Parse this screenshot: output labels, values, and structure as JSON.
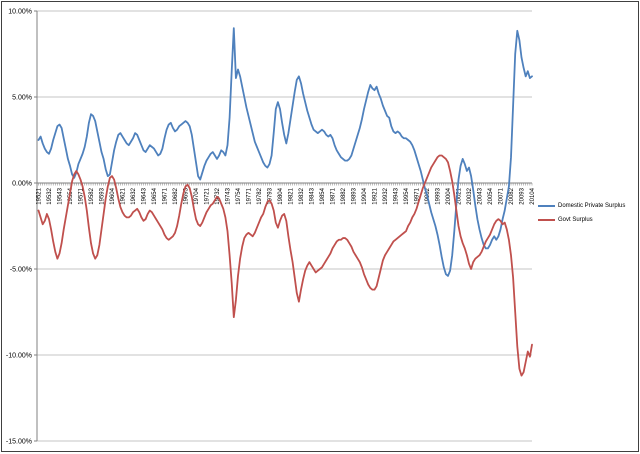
{
  "chart_data": {
    "type": "line",
    "title": "",
    "xlabel": "",
    "ylabel": "",
    "x_axis": {
      "start": "1952Q1",
      "end": "2010Q4",
      "frequency": "quarterly",
      "points": 236,
      "tick_interval_points": 5,
      "tick_labels": [
        "19521",
        "19532",
        "19543",
        "19554",
        "19571",
        "19582",
        "19593",
        "19604",
        "19621",
        "19632",
        "19643",
        "19654",
        "19671",
        "19682",
        "19693",
        "19704",
        "19721",
        "19732",
        "19743",
        "19754",
        "19771",
        "19782",
        "19793",
        "19804",
        "19821",
        "19832",
        "19843",
        "19854",
        "19871",
        "19882",
        "19893",
        "19904",
        "19921",
        "19932",
        "19943",
        "19954",
        "19971",
        "19982",
        "19993",
        "20004",
        "20021",
        "20032",
        "20043",
        "20054",
        "20071",
        "20082",
        "20093",
        "20104"
      ]
    },
    "y_axis": {
      "min": -15,
      "max": 10,
      "unit": "percent",
      "gridlines": true,
      "tick_labels": [
        "10.00%",
        "5.00%",
        "0.00%",
        "-5.00%",
        "-10.00%",
        "-15.00%"
      ],
      "tick_values": [
        10,
        5,
        0,
        -5,
        -10,
        -15
      ]
    },
    "legend": {
      "position": "right"
    },
    "series": [
      {
        "name": "Domestic Private Surplus",
        "color": "#4F81BD",
        "values": [
          2.5,
          2.7,
          2.3,
          2.0,
          1.8,
          1.7,
          2.0,
          2.5,
          2.9,
          3.3,
          3.4,
          3.2,
          2.6,
          2.0,
          1.4,
          1.0,
          0.5,
          0.3,
          0.6,
          1.1,
          1.4,
          1.7,
          2.1,
          2.7,
          3.5,
          4.0,
          3.9,
          3.6,
          3.0,
          2.4,
          1.8,
          1.4,
          0.8,
          0.4,
          0.5,
          1.2,
          1.9,
          2.4,
          2.8,
          2.9,
          2.7,
          2.5,
          2.3,
          2.2,
          2.4,
          2.6,
          2.9,
          2.8,
          2.5,
          2.2,
          1.9,
          1.8,
          2.0,
          2.2,
          2.1,
          2.0,
          1.8,
          1.6,
          1.7,
          2.0,
          2.6,
          3.1,
          3.4,
          3.5,
          3.2,
          3.0,
          3.1,
          3.3,
          3.4,
          3.5,
          3.6,
          3.5,
          3.3,
          2.8,
          2.0,
          1.2,
          0.4,
          0.2,
          0.6,
          1.0,
          1.3,
          1.5,
          1.7,
          1.8,
          1.6,
          1.4,
          1.6,
          1.9,
          1.8,
          1.6,
          2.2,
          3.8,
          6.5,
          9.0,
          6.1,
          6.6,
          6.2,
          5.6,
          5.0,
          4.4,
          3.9,
          3.4,
          2.9,
          2.4,
          2.1,
          1.8,
          1.5,
          1.2,
          1.0,
          0.9,
          1.1,
          1.6,
          2.9,
          4.3,
          4.7,
          4.3,
          3.5,
          2.8,
          2.3,
          2.9,
          3.7,
          4.5,
          5.3,
          6.0,
          6.2,
          5.8,
          5.2,
          4.7,
          4.2,
          3.8,
          3.4,
          3.1,
          3.0,
          2.9,
          3.0,
          3.1,
          3.0,
          2.8,
          2.7,
          2.8,
          2.6,
          2.2,
          1.9,
          1.7,
          1.5,
          1.4,
          1.3,
          1.3,
          1.4,
          1.6,
          2.0,
          2.4,
          2.8,
          3.2,
          3.7,
          4.3,
          4.8,
          5.3,
          5.7,
          5.5,
          5.4,
          5.6,
          5.2,
          4.9,
          4.5,
          4.2,
          3.9,
          3.8,
          3.3,
          3.0,
          2.9,
          3.0,
          2.9,
          2.7,
          2.6,
          2.6,
          2.5,
          2.4,
          2.2,
          1.9,
          1.5,
          1.1,
          0.7,
          0.2,
          -0.3,
          -0.7,
          -1.2,
          -1.7,
          -2.1,
          -2.5,
          -3.0,
          -3.6,
          -4.3,
          -4.9,
          -5.3,
          -5.4,
          -5.1,
          -4.2,
          -2.8,
          -1.2,
          0.2,
          1.0,
          1.4,
          1.1,
          0.7,
          0.9,
          0.4,
          -0.4,
          -1.3,
          -2.1,
          -2.7,
          -3.2,
          -3.6,
          -3.8,
          -3.8,
          -3.6,
          -3.3,
          -3.1,
          -3.3,
          -3.1,
          -2.7,
          -2.1,
          -1.6,
          -0.9,
          -0.2,
          1.5,
          4.5,
          7.5,
          8.85,
          8.3,
          7.3,
          6.7,
          6.2,
          6.5,
          6.1,
          6.2
        ]
      },
      {
        "name": "Govt Surplus",
        "color": "#C0504D",
        "values": [
          -1.6,
          -2.0,
          -2.4,
          -2.2,
          -1.8,
          -2.1,
          -2.7,
          -3.4,
          -4.0,
          -4.4,
          -4.1,
          -3.5,
          -2.7,
          -2.0,
          -1.3,
          -0.6,
          0.1,
          0.5,
          0.7,
          0.5,
          0.2,
          -0.2,
          -0.8,
          -1.6,
          -2.6,
          -3.5,
          -4.1,
          -4.4,
          -4.2,
          -3.6,
          -2.7,
          -1.8,
          -0.9,
          -0.2,
          0.3,
          0.4,
          0.2,
          -0.3,
          -0.9,
          -1.4,
          -1.7,
          -1.9,
          -2.0,
          -2.0,
          -1.9,
          -1.7,
          -1.6,
          -1.5,
          -1.7,
          -2.0,
          -2.2,
          -2.1,
          -1.8,
          -1.6,
          -1.7,
          -1.9,
          -2.1,
          -2.3,
          -2.5,
          -2.7,
          -3.0,
          -3.2,
          -3.3,
          -3.2,
          -3.1,
          -2.9,
          -2.5,
          -1.9,
          -1.2,
          -0.6,
          -0.2,
          -0.1,
          -0.3,
          -0.8,
          -1.5,
          -2.1,
          -2.4,
          -2.5,
          -2.3,
          -2.0,
          -1.7,
          -1.5,
          -1.3,
          -1.2,
          -1.0,
          -0.8,
          -0.9,
          -1.2,
          -1.5,
          -2.0,
          -2.8,
          -4.2,
          -5.8,
          -7.8,
          -6.8,
          -5.4,
          -4.4,
          -3.7,
          -3.2,
          -3.0,
          -2.9,
          -3.0,
          -3.1,
          -2.9,
          -2.6,
          -2.3,
          -2.0,
          -1.8,
          -1.4,
          -1.1,
          -1.0,
          -1.2,
          -1.6,
          -2.3,
          -2.6,
          -2.2,
          -1.9,
          -1.8,
          -2.2,
          -3.1,
          -3.9,
          -4.6,
          -5.5,
          -6.4,
          -6.9,
          -6.2,
          -5.6,
          -5.1,
          -4.8,
          -4.6,
          -4.8,
          -5.0,
          -5.2,
          -5.1,
          -5.0,
          -4.9,
          -4.7,
          -4.5,
          -4.3,
          -4.1,
          -3.8,
          -3.6,
          -3.4,
          -3.3,
          -3.3,
          -3.2,
          -3.2,
          -3.3,
          -3.5,
          -3.7,
          -4.0,
          -4.2,
          -4.4,
          -4.6,
          -4.9,
          -5.3,
          -5.6,
          -5.9,
          -6.1,
          -6.2,
          -6.2,
          -6.0,
          -5.5,
          -5.0,
          -4.5,
          -4.2,
          -4.0,
          -3.8,
          -3.6,
          -3.4,
          -3.3,
          -3.2,
          -3.1,
          -3.0,
          -2.9,
          -2.8,
          -2.5,
          -2.3,
          -2.0,
          -1.8,
          -1.5,
          -1.1,
          -0.7,
          -0.3,
          0.0,
          0.3,
          0.6,
          0.9,
          1.1,
          1.3,
          1.5,
          1.6,
          1.6,
          1.5,
          1.4,
          1.2,
          0.7,
          0.1,
          -0.7,
          -1.6,
          -2.5,
          -3.1,
          -3.5,
          -3.8,
          -4.2,
          -4.7,
          -5.0,
          -4.6,
          -4.4,
          -4.3,
          -4.2,
          -4.0,
          -3.7,
          -3.4,
          -3.2,
          -3.0,
          -2.7,
          -2.4,
          -2.2,
          -2.1,
          -2.2,
          -2.4,
          -2.3,
          -2.7,
          -3.3,
          -4.2,
          -5.5,
          -7.5,
          -9.5,
          -10.8,
          -11.2,
          -11.0,
          -10.4,
          -9.8,
          -10.1,
          -9.4
        ]
      }
    ]
  },
  "colors": {
    "background": "#ffffff",
    "frame_border": "#404040",
    "gridline": "#c6c6c6",
    "axis": "#808080",
    "label_text": "#000000"
  }
}
